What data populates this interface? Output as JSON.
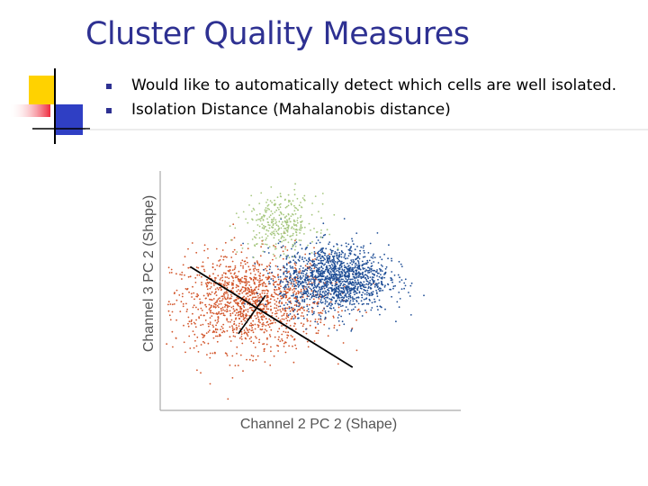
{
  "slide": {
    "title": "Cluster Quality Measures",
    "bullets": [
      "Would like to automatically detect which cells are well isolated.",
      "Isolation Distance (Mahalanobis distance)"
    ]
  },
  "figure": {
    "xlabel": "Channel 2 PC 2 (Shape)",
    "ylabel": "Channel 3 PC 2 (Shape)"
  },
  "chart_data": {
    "type": "scatter",
    "title": "",
    "xlabel": "Channel 2 PC 2 (Shape)",
    "ylabel": "Channel 3 PC 2 (Shape)",
    "xlim": [
      0,
      100
    ],
    "ylim": [
      0,
      100
    ],
    "grid": false,
    "series": [
      {
        "color": "#d2552a",
        "center": [
          30,
          45
        ],
        "spread": [
          13,
          10
        ],
        "n": 1400
      },
      {
        "color": "#1f4e96",
        "center": [
          58,
          55
        ],
        "spread": [
          9,
          7
        ],
        "n": 1500
      },
      {
        "color": "#a6c77f",
        "center": [
          40,
          78
        ],
        "spread": [
          6,
          6
        ],
        "n": 320
      }
    ],
    "annotation_line": {
      "from": [
        10,
        60
      ],
      "to": [
        64,
        18
      ]
    },
    "annotation_tick": {
      "from": [
        26,
        32
      ],
      "to": [
        35,
        48
      ]
    }
  },
  "colors": {
    "title": "#2e3192",
    "bullet_marker": "#2e3192",
    "deco_yellow": "#ffd200",
    "deco_blue": "#2f3fc4",
    "deco_red": "#ee2a3d"
  }
}
